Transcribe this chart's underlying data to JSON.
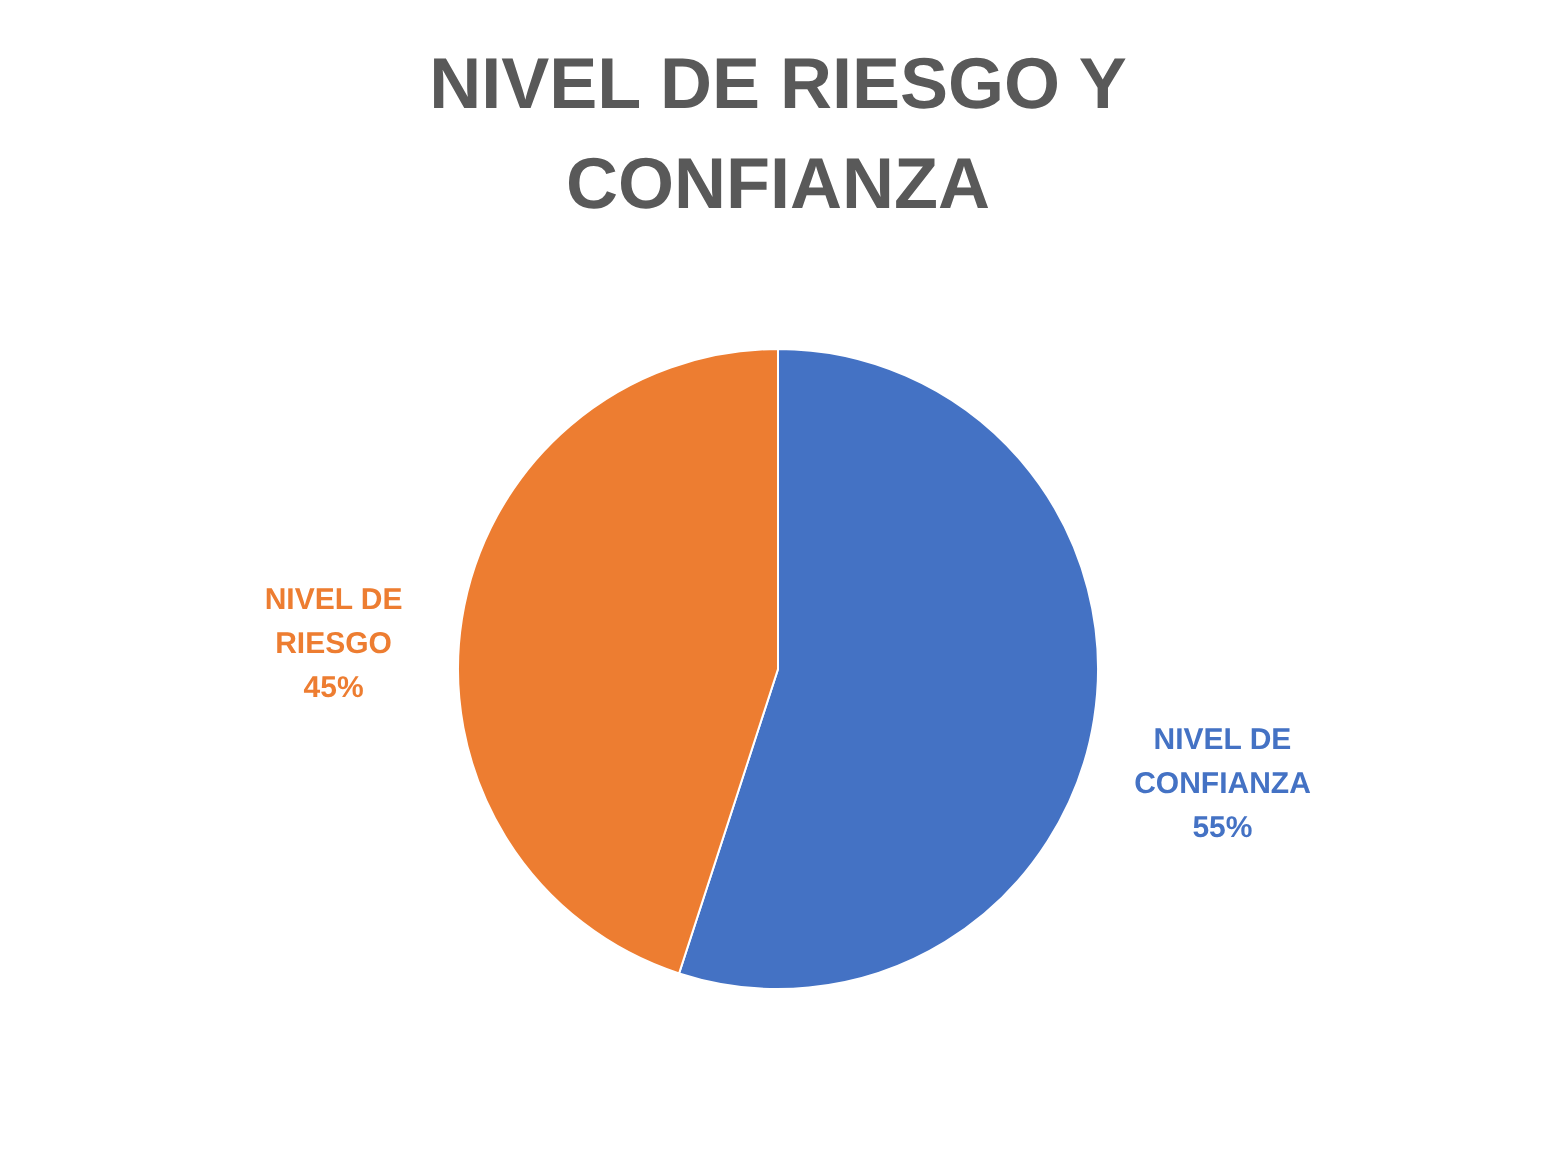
{
  "chart_data": {
    "type": "pie",
    "title": "NIVEL DE RIESGO Y CONFIANZA",
    "categories": [
      "NIVEL DE CONFIANZA",
      "NIVEL DE RIESGO"
    ],
    "values": [
      55,
      45
    ],
    "colors": [
      "#4472c4",
      "#ed7d31"
    ],
    "value_labels": [
      "55%",
      "45%"
    ],
    "legend": false
  }
}
